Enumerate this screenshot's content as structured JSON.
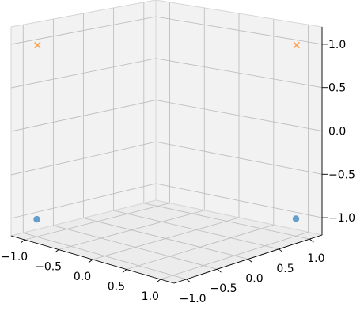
{
  "chart_data": {
    "type": "scatter",
    "projection": "3d",
    "grid": true,
    "xlim": [
      -1.2,
      1.2
    ],
    "ylim": [
      -1.2,
      1.2
    ],
    "zlim": [
      -1.2,
      1.2
    ],
    "x_ticks": [
      "−1.0",
      "−0.5",
      "0.0",
      "0.5",
      "1.0"
    ],
    "y_ticks": [
      "−1.0",
      "−0.5",
      "0.0",
      "0.5",
      "1.0"
    ],
    "z_ticks": [
      "−1.0",
      "−0.5",
      "0.0",
      "0.5",
      "1.0"
    ],
    "series": [
      {
        "marker": "circle",
        "color": "#1f77b4",
        "points": [
          {
            "x": -1.0,
            "y": -1.0,
            "z": -1.0
          },
          {
            "x": 1.0,
            "y": 1.0,
            "z": -1.0
          }
        ]
      },
      {
        "marker": "x",
        "color": "#ff7f0e",
        "points": [
          {
            "x": -1.0,
            "y": -1.0,
            "z": 1.0
          },
          {
            "x": 1.0,
            "y": 1.0,
            "z": 1.0
          }
        ]
      }
    ]
  }
}
